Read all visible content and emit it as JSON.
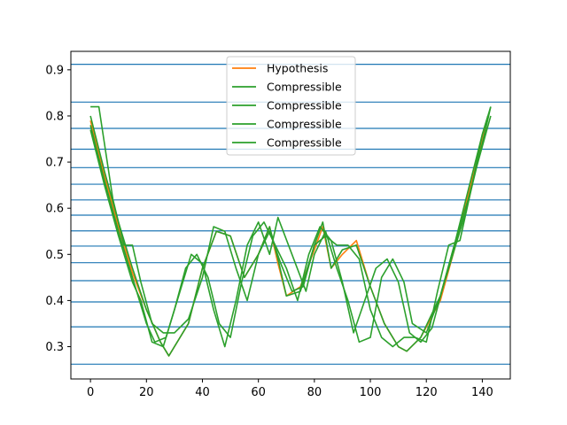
{
  "chart_data": {
    "type": "line",
    "title": "",
    "xlabel": "",
    "ylabel": "",
    "xlim": [
      -7,
      150
    ],
    "ylim": [
      0.23,
      0.94
    ],
    "xticks": [
      0,
      20,
      40,
      60,
      80,
      100,
      120,
      140
    ],
    "xtick_labels": [
      "0",
      "20",
      "40",
      "60",
      "80",
      "100",
      "120",
      "140"
    ],
    "yticks": [
      0.3,
      0.4,
      0.5,
      0.6,
      0.7,
      0.8,
      0.9
    ],
    "ytick_labels": [
      "0.3",
      "0.4",
      "0.5",
      "0.6",
      "0.7",
      "0.8",
      "0.9"
    ],
    "hlines": {
      "color": "#1f77b4",
      "values": [
        0.912,
        0.83,
        0.773,
        0.728,
        0.688,
        0.652,
        0.618,
        0.585,
        0.551,
        0.518,
        0.482,
        0.443,
        0.397,
        0.343,
        0.262
      ]
    },
    "legend": {
      "position": "top-center"
    },
    "series": [
      {
        "name": "Hypothesis",
        "color": "#ff7f0e",
        "x": [
          0,
          5,
          10,
          15,
          20,
          25,
          28,
          35,
          40,
          45,
          50,
          55,
          60,
          64,
          67,
          70,
          75,
          80,
          83,
          86,
          90,
          95,
          100,
          105,
          110,
          113,
          118,
          125,
          130,
          135,
          140,
          142
        ],
        "y": [
          0.79,
          0.67,
          0.56,
          0.46,
          0.38,
          0.31,
          0.28,
          0.35,
          0.47,
          0.55,
          0.54,
          0.45,
          0.5,
          0.56,
          0.48,
          0.41,
          0.43,
          0.51,
          0.56,
          0.47,
          0.5,
          0.53,
          0.43,
          0.35,
          0.3,
          0.29,
          0.32,
          0.4,
          0.51,
          0.63,
          0.75,
          0.8
        ]
      },
      {
        "name": "Compressible",
        "color": "#2ca02c",
        "x": [
          0,
          5,
          10,
          15,
          20,
          25,
          28,
          35,
          40,
          45,
          50,
          55,
          60,
          64,
          67,
          70,
          75,
          80,
          83,
          86,
          90,
          95,
          100,
          105,
          110,
          113,
          118,
          125,
          130,
          135,
          140,
          142
        ],
        "y": [
          0.8,
          0.68,
          0.57,
          0.47,
          0.38,
          0.31,
          0.28,
          0.35,
          0.47,
          0.55,
          0.54,
          0.45,
          0.5,
          0.56,
          0.49,
          0.41,
          0.42,
          0.52,
          0.57,
          0.47,
          0.51,
          0.52,
          0.43,
          0.35,
          0.3,
          0.29,
          0.32,
          0.41,
          0.52,
          0.64,
          0.76,
          0.8
        ]
      },
      {
        "name": "Compressible",
        "color": "#2ca02c",
        "x": [
          0,
          5,
          10,
          15,
          20,
          23,
          27,
          32,
          36,
          40,
          44,
          48,
          52,
          56,
          60,
          64,
          67,
          72,
          77,
          80,
          84,
          88,
          92,
          96,
          100,
          104,
          108,
          112,
          115,
          120,
          125,
          130,
          135,
          140,
          143
        ],
        "y": [
          0.78,
          0.66,
          0.55,
          0.45,
          0.35,
          0.31,
          0.32,
          0.42,
          0.5,
          0.48,
          0.38,
          0.3,
          0.4,
          0.52,
          0.57,
          0.5,
          0.58,
          0.5,
          0.42,
          0.5,
          0.55,
          0.47,
          0.4,
          0.31,
          0.32,
          0.45,
          0.49,
          0.44,
          0.35,
          0.33,
          0.41,
          0.52,
          0.62,
          0.74,
          0.82
        ]
      },
      {
        "name": "Compressible",
        "color": "#2ca02c",
        "x": [
          0,
          3,
          8,
          12,
          15,
          18,
          22,
          26,
          30,
          35,
          40,
          44,
          48,
          52,
          56,
          60,
          64,
          68,
          72,
          76,
          80,
          84,
          88,
          92,
          96,
          100,
          104,
          108,
          112,
          116,
          120,
          124,
          128,
          132,
          136,
          140,
          143
        ],
        "y": [
          0.82,
          0.82,
          0.62,
          0.52,
          0.52,
          0.44,
          0.35,
          0.33,
          0.33,
          0.36,
          0.45,
          0.56,
          0.55,
          0.47,
          0.4,
          0.5,
          0.55,
          0.48,
          0.42,
          0.43,
          0.52,
          0.54,
          0.52,
          0.52,
          0.49,
          0.38,
          0.32,
          0.3,
          0.32,
          0.32,
          0.31,
          0.42,
          0.52,
          0.53,
          0.64,
          0.76,
          0.82
        ]
      },
      {
        "name": "Compressible",
        "color": "#2ca02c",
        "x": [
          0,
          5,
          10,
          15,
          18,
          22,
          26,
          30,
          34,
          38,
          42,
          46,
          50,
          54,
          58,
          62,
          66,
          70,
          74,
          78,
          82,
          86,
          90,
          94,
          98,
          102,
          106,
          110,
          114,
          118,
          122,
          126,
          130,
          134,
          138,
          143
        ],
        "y": [
          0.77,
          0.65,
          0.54,
          0.44,
          0.4,
          0.31,
          0.3,
          0.38,
          0.47,
          0.5,
          0.45,
          0.35,
          0.32,
          0.44,
          0.54,
          0.57,
          0.52,
          0.47,
          0.4,
          0.5,
          0.56,
          0.53,
          0.44,
          0.33,
          0.4,
          0.47,
          0.49,
          0.44,
          0.33,
          0.31,
          0.34,
          0.43,
          0.51,
          0.59,
          0.69,
          0.8
        ]
      }
    ]
  }
}
